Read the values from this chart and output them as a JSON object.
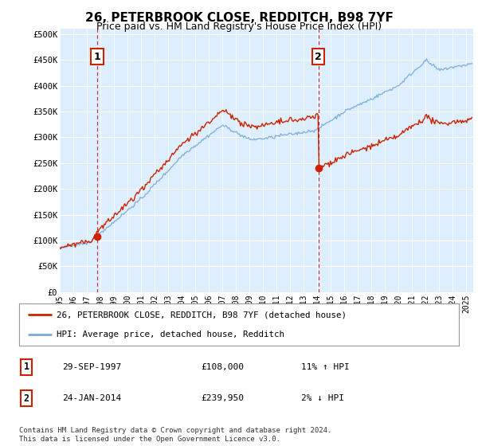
{
  "title": "26, PETERBROOK CLOSE, REDDITCH, B98 7YF",
  "subtitle": "Price paid vs. HM Land Registry's House Price Index (HPI)",
  "ylabel_ticks": [
    "£0",
    "£50K",
    "£100K",
    "£150K",
    "£200K",
    "£250K",
    "£300K",
    "£350K",
    "£400K",
    "£450K",
    "£500K"
  ],
  "ytick_values": [
    0,
    50000,
    100000,
    150000,
    200000,
    250000,
    300000,
    350000,
    400000,
    450000,
    500000
  ],
  "ylim": [
    0,
    510000
  ],
  "xlim_start": 1995.0,
  "xlim_end": 2025.5,
  "xtick_years": [
    1995,
    1996,
    1997,
    1998,
    1999,
    2000,
    2001,
    2002,
    2003,
    2004,
    2005,
    2006,
    2007,
    2008,
    2009,
    2010,
    2011,
    2012,
    2013,
    2014,
    2015,
    2016,
    2017,
    2018,
    2019,
    2020,
    2021,
    2022,
    2023,
    2024,
    2025
  ],
  "sale1_x": 1997.75,
  "sale1_y": 108000,
  "sale1_label": "1",
  "sale2_x": 2014.07,
  "sale2_y": 239950,
  "sale2_label": "2",
  "vline_color": "#cc0000",
  "hpi_line_color": "#7aacdc",
  "price_line_color": "#cc2200",
  "background_color": "#ffffff",
  "plot_bg_color": "#ddeeff",
  "grid_color": "#ffffff",
  "legend_label_price": "26, PETERBROOK CLOSE, REDDITCH, B98 7YF (detached house)",
  "legend_label_hpi": "HPI: Average price, detached house, Redditch",
  "table_row1": [
    "1",
    "29-SEP-1997",
    "£108,000",
    "11% ↑ HPI"
  ],
  "table_row2": [
    "2",
    "24-JAN-2014",
    "£239,950",
    "2% ↓ HPI"
  ],
  "footer": "Contains HM Land Registry data © Crown copyright and database right 2024.\nThis data is licensed under the Open Government Licence v3.0.",
  "title_fontsize": 11,
  "subtitle_fontsize": 9
}
